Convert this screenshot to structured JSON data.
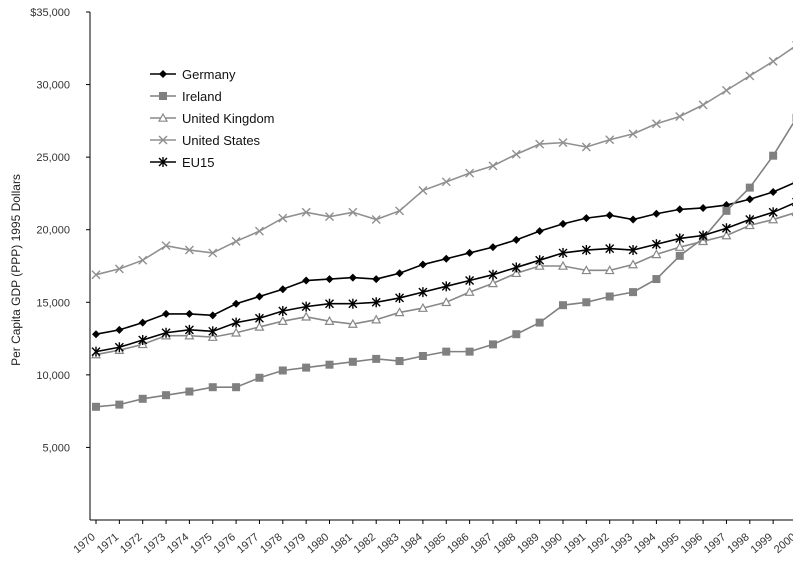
{
  "chart_data": {
    "type": "line",
    "title": "",
    "xlabel": "",
    "ylabel": "Per Capita GDP (PPP) 1995 Dollars",
    "ylim": [
      0,
      35000
    ],
    "y_ticks": [
      5000,
      10000,
      15000,
      20000,
      25000,
      30000,
      35000
    ],
    "y_tick_labels": [
      "5,000",
      "10,000",
      "15,000",
      "20,000",
      "25,000",
      "30,000",
      "$35,000"
    ],
    "x": [
      "1970",
      "1971",
      "1972",
      "1973",
      "1974",
      "1975",
      "1976",
      "1977",
      "1978",
      "1979",
      "1980",
      "1981",
      "1982",
      "1983",
      "1984",
      "1985",
      "1986",
      "1987",
      "1988",
      "1989",
      "1990",
      "1991",
      "1992",
      "1993",
      "1994",
      "1995",
      "1996",
      "1997",
      "1998",
      "1999",
      "2000"
    ],
    "legend_position": "top-left",
    "grid": false,
    "series": [
      {
        "name": "Germany",
        "marker": "diamond",
        "color": "#000000",
        "values": [
          12800,
          13100,
          13600,
          14200,
          14200,
          14100,
          14900,
          15400,
          15900,
          16500,
          16600,
          16700,
          16600,
          17000,
          17600,
          18000,
          18400,
          18800,
          19300,
          19900,
          20400,
          20800,
          21000,
          20700,
          21100,
          21400,
          21500,
          21700,
          22100,
          22600,
          23300
        ]
      },
      {
        "name": "Ireland",
        "marker": "square",
        "color": "#808080",
        "values": [
          7800,
          7950,
          8350,
          8600,
          8850,
          9150,
          9150,
          9800,
          10300,
          10500,
          10700,
          10900,
          11100,
          10950,
          11300,
          11600,
          11600,
          12100,
          12800,
          13600,
          14800,
          15000,
          15400,
          15700,
          16600,
          18200,
          19400,
          21300,
          22900,
          25100,
          27700
        ]
      },
      {
        "name": "United Kingdom",
        "marker": "triangle",
        "color": "#888888",
        "values": [
          11400,
          11700,
          12100,
          12700,
          12700,
          12600,
          12900,
          13300,
          13700,
          14000,
          13700,
          13500,
          13800,
          14300,
          14600,
          15000,
          15700,
          16300,
          17000,
          17500,
          17500,
          17200,
          17200,
          17600,
          18300,
          18800,
          19200,
          19600,
          20300,
          20700,
          21200
        ]
      },
      {
        "name": "United States",
        "marker": "x",
        "color": "#909090",
        "values": [
          16900,
          17300,
          17900,
          18900,
          18600,
          18400,
          19200,
          19900,
          20800,
          21200,
          20900,
          21200,
          20700,
          21300,
          22700,
          23300,
          23900,
          24400,
          25200,
          25900,
          26000,
          25700,
          26200,
          26600,
          27300,
          27800,
          28600,
          29600,
          30600,
          31600,
          32700
        ]
      },
      {
        "name": "EU15",
        "marker": "asterisk",
        "color": "#000000",
        "values": [
          11600,
          11900,
          12400,
          12900,
          13100,
          13000,
          13600,
          13900,
          14400,
          14700,
          14900,
          14900,
          15000,
          15300,
          15700,
          16100,
          16500,
          16900,
          17400,
          17900,
          18400,
          18600,
          18700,
          18600,
          19000,
          19400,
          19600,
          20100,
          20700,
          21200,
          21900
        ]
      }
    ]
  }
}
